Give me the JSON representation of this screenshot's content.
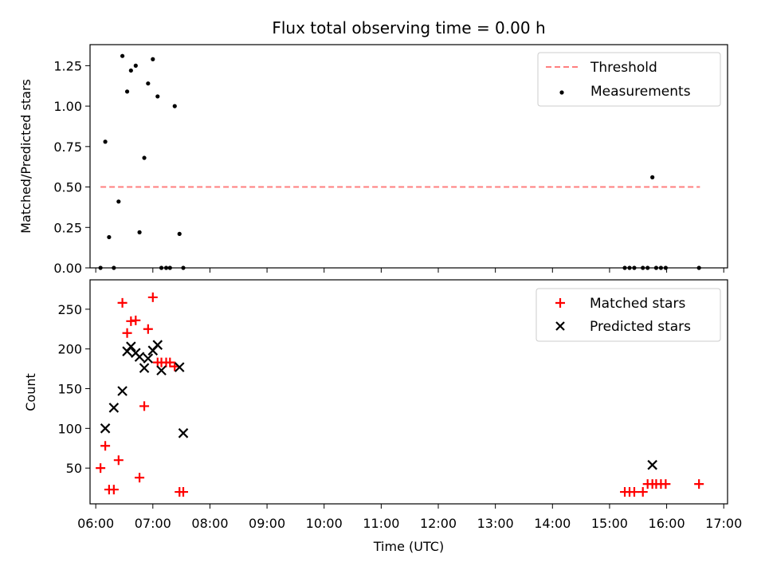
{
  "chart_data": {
    "title": "Flux total observing time = 0.00 h",
    "xlabel": "Time (UTC)",
    "x_ticks": [
      "06:00",
      "07:00",
      "08:00",
      "09:00",
      "10:00",
      "11:00",
      "12:00",
      "13:00",
      "14:00",
      "15:00",
      "16:00",
      "17:00"
    ],
    "xlim": [
      "05:54",
      "17:04"
    ],
    "panels": [
      {
        "type": "scatter",
        "ylabel": "Matched/Predicted stars",
        "ylim": [
          0,
          1.38
        ],
        "y_ticks": [
          "0.00",
          "0.25",
          "0.50",
          "0.75",
          "1.00",
          "1.25"
        ],
        "grid": false,
        "legend_position": "top-right",
        "series": [
          {
            "name": "Threshold",
            "kind": "line",
            "style": "dashed",
            "color": "#ff7f7f",
            "x": [
              "06:05",
              "16:35"
            ],
            "y": [
              0.5,
              0.5
            ]
          },
          {
            "name": "Measurements",
            "kind": "points",
            "color": "#000000",
            "x": [
              "06:05",
              "06:10",
              "06:14",
              "06:19",
              "06:24",
              "06:28",
              "06:33",
              "06:37",
              "06:42",
              "06:46",
              "06:51",
              "06:55",
              "07:00",
              "07:05",
              "07:09",
              "07:14",
              "07:18",
              "07:23",
              "07:28",
              "07:32",
              "15:16",
              "15:21",
              "15:26",
              "15:35",
              "15:40",
              "15:45",
              "15:49",
              "15:54",
              "15:59",
              "16:34"
            ],
            "y": [
              0.0,
              0.78,
              0.19,
              0.0,
              0.41,
              1.31,
              1.09,
              1.22,
              1.25,
              0.22,
              0.68,
              1.14,
              1.29,
              1.06,
              0.0,
              0.0,
              0.0,
              1.0,
              0.21,
              0.0,
              0.0,
              0.0,
              0.0,
              0.0,
              0.0,
              0.56,
              0.0,
              0.0,
              0.0,
              0.0
            ]
          }
        ]
      },
      {
        "type": "scatter",
        "ylabel": "Count",
        "ylim": [
          5,
          287
        ],
        "y_ticks": [
          "50",
          "100",
          "150",
          "200",
          "250"
        ],
        "grid": false,
        "legend_position": "top-right",
        "series": [
          {
            "name": "Matched stars",
            "marker": "plus",
            "color": "#ff0000",
            "x": [
              "06:05",
              "06:10",
              "06:14",
              "06:19",
              "06:24",
              "06:28",
              "06:33",
              "06:37",
              "06:42",
              "06:46",
              "06:51",
              "06:55",
              "07:00",
              "07:05",
              "07:09",
              "07:14",
              "07:18",
              "07:23",
              "07:28",
              "07:32",
              "15:16",
              "15:21",
              "15:26",
              "15:35",
              "15:40",
              "15:45",
              "15:49",
              "15:54",
              "15:59",
              "16:34"
            ],
            "y": [
              50,
              78,
              23,
              23,
              60,
              258,
              220,
              235,
              236,
              38,
              128,
              225,
              265,
              183,
              183,
              183,
              183,
              178,
              20,
              20,
              20,
              20,
              20,
              20,
              30,
              30,
              30,
              30,
              30,
              30
            ]
          },
          {
            "name": "Predicted stars",
            "marker": "x",
            "color": "#000000",
            "x": [
              "06:10",
              "06:19",
              "06:28",
              "06:33",
              "06:37",
              "06:42",
              "06:46",
              "06:51",
              "06:55",
              "07:00",
              "07:05",
              "07:09",
              "07:28",
              "07:32",
              "15:45"
            ],
            "y": [
              100,
              126,
              147,
              197,
              203,
              195,
              190,
              176,
              188,
              198,
              205,
              173,
              177,
              94,
              54
            ]
          }
        ]
      }
    ]
  }
}
